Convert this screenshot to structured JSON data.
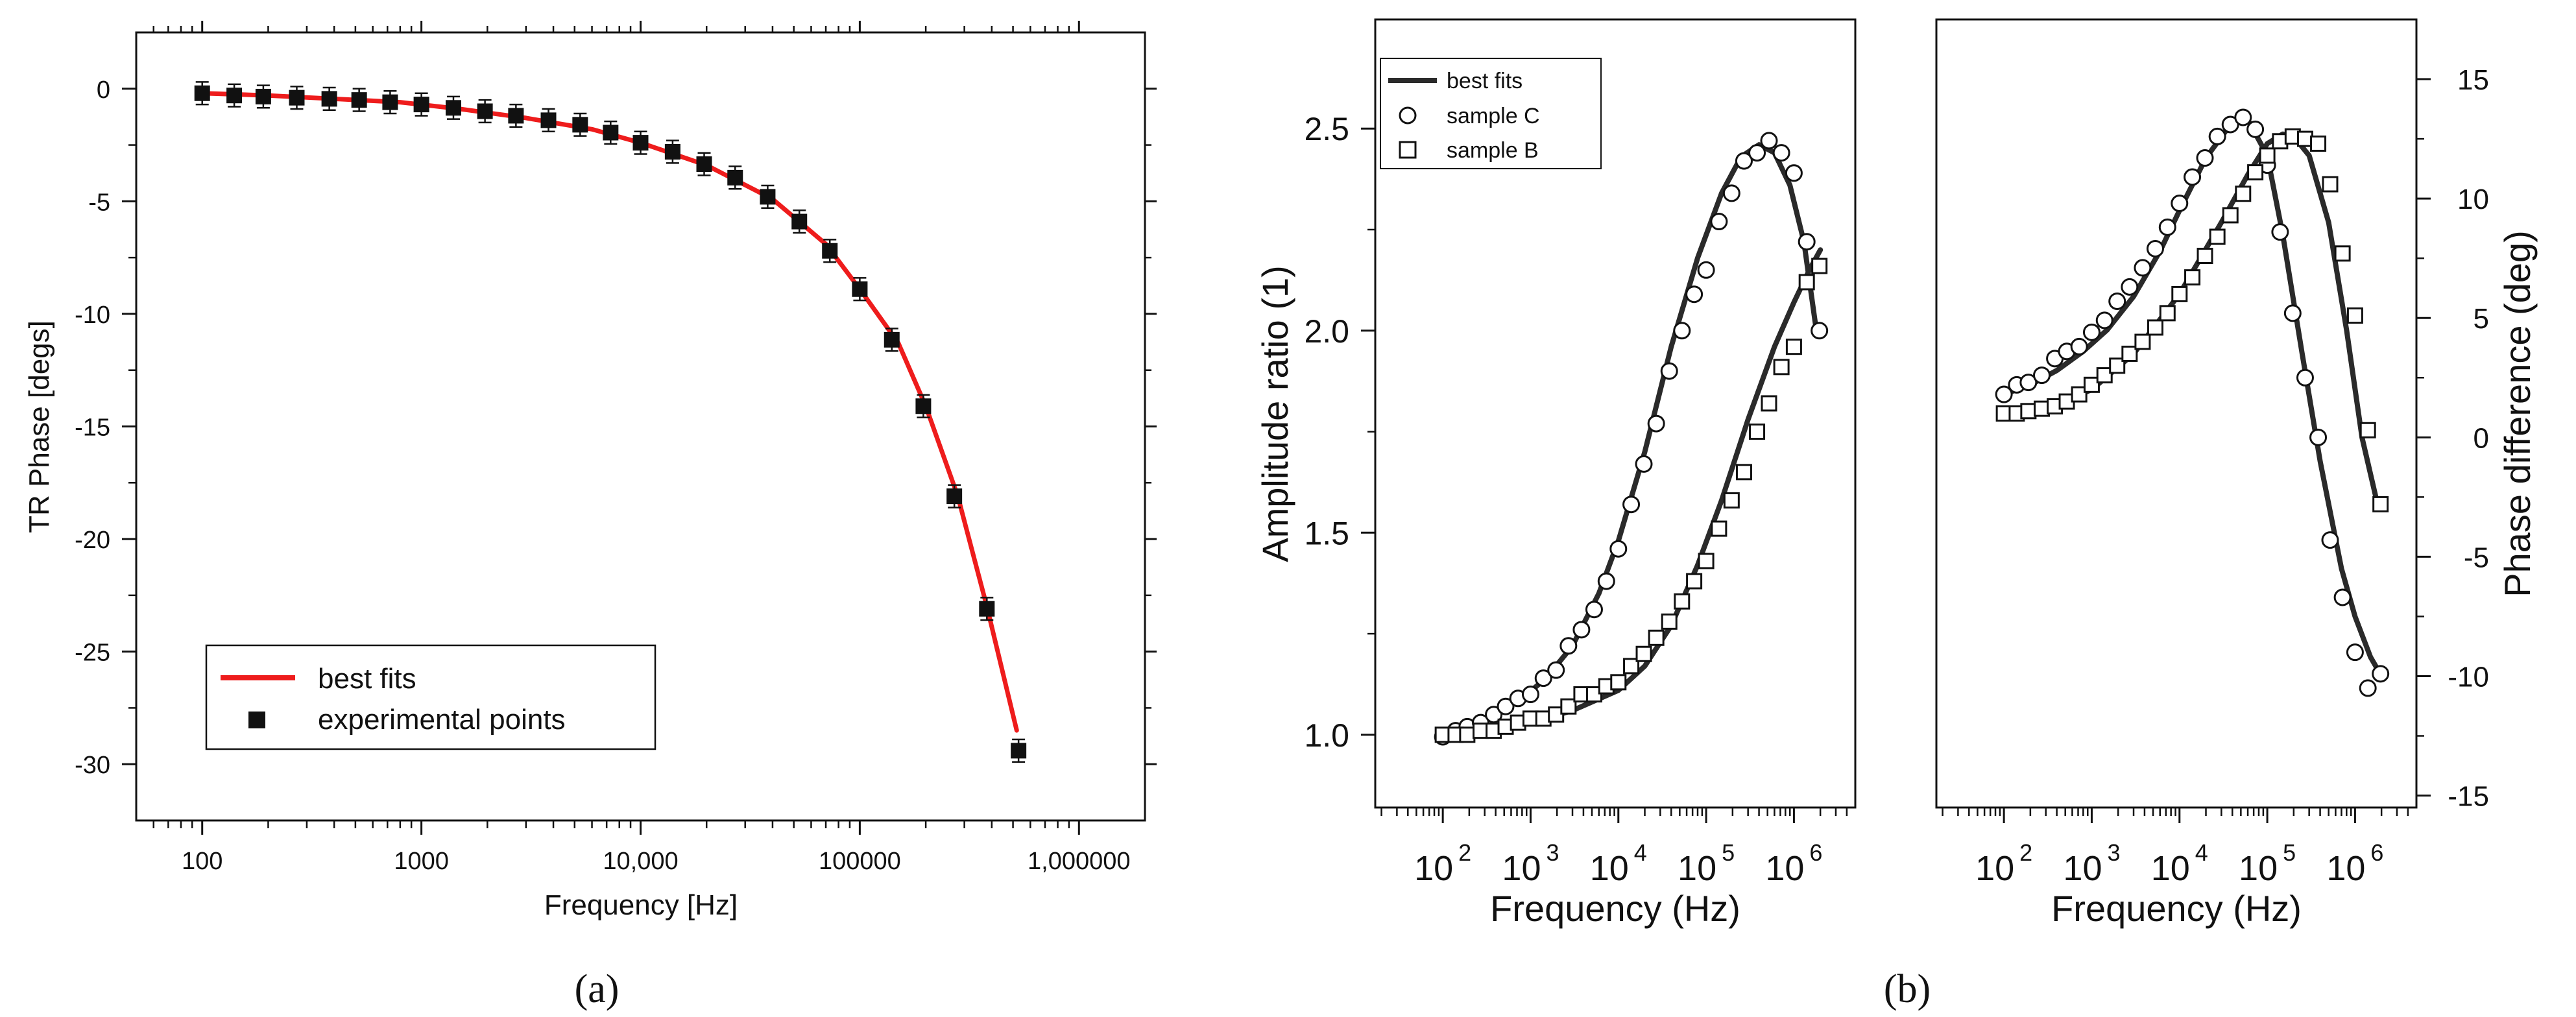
{
  "colors": {
    "red_fit": "#ee1c1c",
    "black": "#111111",
    "dark_fit": "#2a2a2a"
  },
  "panel_labels": [
    "(a)",
    "(b)"
  ],
  "chart_data": [
    {
      "id": "a",
      "type": "scatter",
      "title": "",
      "xlabel": "Frequency [Hz]",
      "ylabel": "TR Phase [degs]",
      "xscale": "log",
      "xlim": [
        50,
        2000000
      ],
      "ylim": [
        -32.5,
        2.5
      ],
      "xticks": [
        100,
        1000,
        10000,
        100000,
        1000000
      ],
      "xtick_labels": [
        "100",
        "1000",
        "10,000",
        "100000",
        "1,000000"
      ],
      "yticks": [
        0,
        -5,
        -10,
        -15,
        -20,
        -25,
        -30
      ],
      "ytick_labels": [
        "0",
        "-5",
        "-10",
        "-15",
        "-20",
        "-25",
        "-30"
      ],
      "legend_position": "bottom-left",
      "legend": [
        "best fits",
        "experimental points"
      ],
      "series": [
        {
          "name": "best fits",
          "kind": "line",
          "color": "#ee1c1c",
          "x": [
            100,
            200,
            400,
            800,
            1500,
            3000,
            6000,
            10000,
            20000,
            40000,
            70000,
            100000,
            150000,
            200000,
            280000,
            380000,
            520000
          ],
          "y": [
            -0.2,
            -0.3,
            -0.45,
            -0.6,
            -0.9,
            -1.3,
            -1.8,
            -2.4,
            -3.4,
            -4.9,
            -6.9,
            -8.9,
            -11.3,
            -14.1,
            -18.1,
            -23.0,
            -28.5
          ]
        },
        {
          "name": "experimental points",
          "kind": "scatter",
          "marker": "square",
          "error_bars": 0.5,
          "x": [
            100,
            140,
            190,
            270,
            380,
            520,
            720,
            1000,
            1400,
            1950,
            2700,
            3800,
            5300,
            7300,
            10000,
            14000,
            19500,
            27000,
            38000,
            53000,
            73000,
            100000,
            140000,
            195000,
            270000,
            380000,
            530000
          ],
          "y": [
            -0.2,
            -0.3,
            -0.35,
            -0.4,
            -0.45,
            -0.5,
            -0.6,
            -0.7,
            -0.85,
            -1.0,
            -1.2,
            -1.4,
            -1.6,
            -1.95,
            -2.4,
            -2.8,
            -3.35,
            -3.95,
            -4.8,
            -5.9,
            -7.2,
            -8.9,
            -11.15,
            -14.1,
            -18.1,
            -23.1,
            -29.4
          ]
        }
      ]
    },
    {
      "id": "b-left",
      "type": "scatter",
      "title": "",
      "xlabel": "Frequency (Hz)",
      "ylabel": "Amplitude ratio (1)",
      "xscale": "log",
      "xlim": [
        17,
        5000000
      ],
      "ylim": [
        0.82,
        2.77
      ],
      "xticks": [
        100,
        1000,
        10000,
        100000,
        1000000
      ],
      "xtick_labels": [
        "10",
        "10",
        "10",
        "10",
        "10"
      ],
      "xtick_exponents": [
        "2",
        "3",
        "4",
        "5",
        "6"
      ],
      "yticks": [
        1.0,
        1.5,
        2.0,
        2.5
      ],
      "ytick_labels": [
        "1.0",
        "1.5",
        "2.0",
        "2.5"
      ],
      "legend_position": "top-left",
      "legend": [
        "best fits",
        "sample C",
        "sample B"
      ],
      "series": [
        {
          "name": "best fits (sample C)",
          "kind": "line",
          "x": [
            100,
            200,
            400,
            800,
            1500,
            3000,
            6000,
            10000,
            20000,
            40000,
            80000,
            150000,
            250000,
            400000,
            600000,
            900000,
            1300000,
            1800000
          ],
          "y": [
            1.0,
            1.02,
            1.05,
            1.09,
            1.14,
            1.22,
            1.35,
            1.48,
            1.7,
            1.96,
            2.18,
            2.34,
            2.43,
            2.46,
            2.44,
            2.36,
            2.22,
            2.0
          ]
        },
        {
          "name": "sample C",
          "kind": "scatter",
          "marker": "circle",
          "x": [
            100,
            140,
            190,
            270,
            380,
            520,
            720,
            1000,
            1400,
            1950,
            2700,
            3800,
            5300,
            7300,
            10000,
            14000,
            19500,
            27000,
            38000,
            53000,
            73000,
            100000,
            140000,
            195000,
            270000,
            380000,
            520000,
            720000,
            1000000,
            1400000,
            1950000
          ],
          "y": [
            0.995,
            1.01,
            1.02,
            1.03,
            1.05,
            1.07,
            1.09,
            1.1,
            1.14,
            1.16,
            1.22,
            1.26,
            1.31,
            1.38,
            1.46,
            1.57,
            1.67,
            1.77,
            1.9,
            2.0,
            2.09,
            2.15,
            2.27,
            2.34,
            2.42,
            2.44,
            2.47,
            2.44,
            2.39,
            2.22,
            2.0
          ]
        },
        {
          "name": "best fits (sample B)",
          "kind": "line",
          "x": [
            100,
            300,
            1000,
            3000,
            10000,
            20000,
            40000,
            80000,
            150000,
            300000,
            600000,
            1000000,
            1500000,
            2000000
          ],
          "y": [
            1.0,
            1.01,
            1.03,
            1.06,
            1.11,
            1.17,
            1.27,
            1.42,
            1.58,
            1.78,
            1.96,
            2.07,
            2.15,
            2.2
          ]
        },
        {
          "name": "sample B",
          "kind": "scatter",
          "marker": "square",
          "x": [
            100,
            140,
            190,
            270,
            380,
            520,
            720,
            1000,
            1400,
            1950,
            2700,
            3800,
            5300,
            7300,
            10000,
            14000,
            19500,
            27000,
            38000,
            53000,
            73000,
            100000,
            140000,
            195000,
            270000,
            380000,
            520000,
            720000,
            1000000,
            1400000,
            1950000
          ],
          "y": [
            1.0,
            1.0,
            1.0,
            1.01,
            1.01,
            1.02,
            1.03,
            1.04,
            1.04,
            1.05,
            1.07,
            1.1,
            1.1,
            1.12,
            1.13,
            1.17,
            1.2,
            1.24,
            1.28,
            1.33,
            1.38,
            1.43,
            1.51,
            1.58,
            1.65,
            1.75,
            1.82,
            1.91,
            1.96,
            2.12,
            2.16
          ]
        }
      ]
    },
    {
      "id": "b-right",
      "type": "scatter",
      "title": "",
      "xlabel": "Frequency (Hz)",
      "ylabel": "Phase difference (deg)",
      "yaxis_side": "right",
      "xscale": "log",
      "xlim": [
        17,
        5000000
      ],
      "ylim": [
        -15.5,
        17.5
      ],
      "xticks": [
        100,
        1000,
        10000,
        100000,
        1000000
      ],
      "xtick_labels": [
        "10",
        "10",
        "10",
        "10",
        "10"
      ],
      "xtick_exponents": [
        "2",
        "3",
        "4",
        "5",
        "6"
      ],
      "yticks": [
        15,
        10,
        5,
        0,
        -5,
        -10,
        -15
      ],
      "ytick_labels": [
        "15",
        "10",
        "5",
        "0",
        "-5",
        "-10",
        "-15"
      ],
      "series": [
        {
          "name": "best fits (sample C)",
          "kind": "line",
          "x": [
            100,
            200,
            400,
            800,
            1500,
            3000,
            6000,
            10000,
            20000,
            40000,
            60000,
            100000,
            150000,
            250000,
            400000,
            700000,
            1000000,
            1500000,
            2000000
          ],
          "y": [
            1.8,
            2.2,
            2.8,
            3.6,
            4.5,
            5.9,
            7.8,
            9.5,
            11.7,
            13.2,
            13.3,
            11.8,
            8.5,
            3.5,
            -1.0,
            -5.5,
            -7.5,
            -9.2,
            -10.0
          ]
        },
        {
          "name": "sample C",
          "kind": "scatter",
          "marker": "circle",
          "x": [
            100,
            140,
            190,
            270,
            380,
            520,
            720,
            1000,
            1400,
            1950,
            2700,
            3800,
            5300,
            7300,
            10000,
            14000,
            19500,
            27000,
            38000,
            53000,
            73000,
            100000,
            140000,
            195000,
            270000,
            380000,
            520000,
            720000,
            1000000,
            1400000,
            1950000
          ],
          "y": [
            1.8,
            2.2,
            2.3,
            2.6,
            3.3,
            3.6,
            3.8,
            4.4,
            4.9,
            5.7,
            6.3,
            7.1,
            7.9,
            8.8,
            9.8,
            10.9,
            11.7,
            12.6,
            13.1,
            13.4,
            12.9,
            11.4,
            8.6,
            5.2,
            2.5,
            0.0,
            -4.3,
            -6.7,
            -9.0,
            -10.5,
            -9.9
          ]
        },
        {
          "name": "best fits (sample B)",
          "kind": "line",
          "x": [
            100,
            300,
            1000,
            3000,
            10000,
            30000,
            60000,
            100000,
            150000,
            200000,
            300000,
            500000,
            800000,
            1200000,
            1800000
          ],
          "y": [
            1.0,
            1.2,
            2.0,
            3.5,
            6.0,
            9.0,
            11.0,
            12.3,
            12.7,
            12.6,
            11.8,
            9.0,
            4.5,
            0.0,
            -2.8
          ]
        },
        {
          "name": "sample B",
          "kind": "scatter",
          "marker": "square",
          "x": [
            100,
            140,
            190,
            270,
            380,
            520,
            720,
            1000,
            1400,
            1950,
            2700,
            3800,
            5300,
            7300,
            10000,
            14000,
            19500,
            27000,
            38000,
            53000,
            73000,
            100000,
            140000,
            195000,
            270000,
            380000,
            520000,
            720000,
            1000000,
            1400000,
            1950000
          ],
          "y": [
            1.0,
            1.0,
            1.1,
            1.2,
            1.3,
            1.5,
            1.8,
            2.2,
            2.6,
            3.0,
            3.5,
            4.0,
            4.6,
            5.2,
            6.0,
            6.7,
            7.6,
            8.4,
            9.3,
            10.2,
            11.1,
            11.8,
            12.4,
            12.6,
            12.5,
            12.3,
            10.6,
            7.7,
            5.1,
            0.3,
            -2.8
          ]
        }
      ]
    }
  ]
}
